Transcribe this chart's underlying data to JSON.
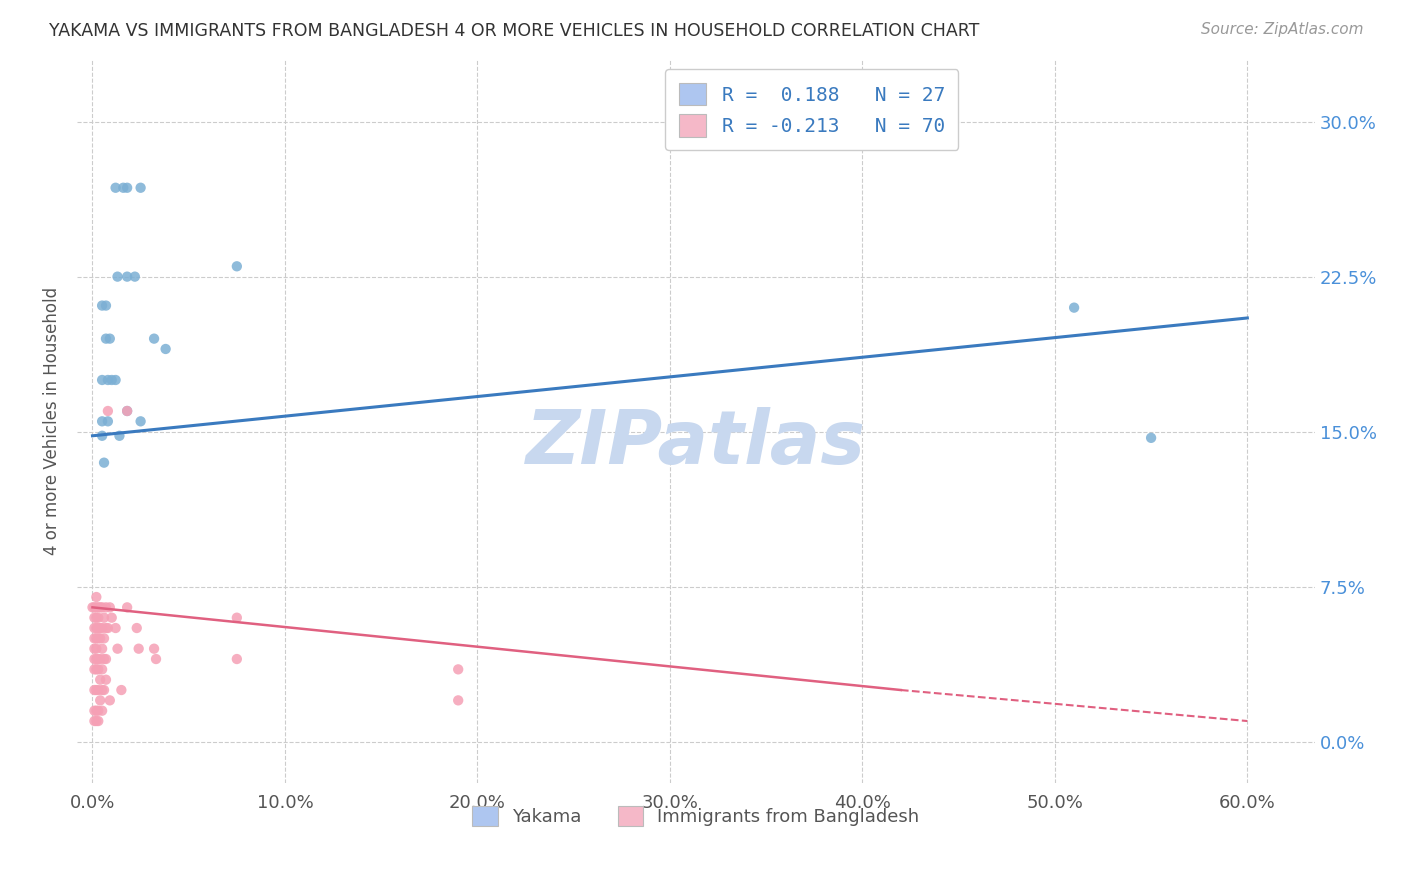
{
  "title": "YAKAMA VS IMMIGRANTS FROM BANGLADESH 4 OR MORE VEHICLES IN HOUSEHOLD CORRELATION CHART",
  "source": "Source: ZipAtlas.com",
  "ylabel": "4 or more Vehicles in Household",
  "x_tick_labels": [
    "0.0%",
    "10.0%",
    "20.0%",
    "30.0%",
    "40.0%",
    "50.0%",
    "60.0%"
  ],
  "x_tick_vals": [
    0.0,
    0.1,
    0.2,
    0.3,
    0.4,
    0.5,
    0.6
  ],
  "y_tick_labels": [
    "0.0%",
    "7.5%",
    "15.0%",
    "22.5%",
    "30.0%"
  ],
  "y_tick_vals": [
    0.0,
    0.075,
    0.15,
    0.225,
    0.3
  ],
  "xlim": [
    -0.008,
    0.635
  ],
  "ylim": [
    -0.02,
    0.33
  ],
  "yakama_color": "#7bafd4",
  "yakama_line_color": "#3a7abf",
  "bangladesh_color": "#f5a0b5",
  "bangladesh_line_color": "#e06080",
  "watermark": "ZIPatlas",
  "watermark_color": "#c8d8ef",
  "scatter_size": 55,
  "legend_yakama_color": "#aec6f0",
  "legend_bangladesh_color": "#f5b8c8",
  "yakama_scatter": [
    [
      0.005,
      0.211
    ],
    [
      0.007,
      0.211
    ],
    [
      0.012,
      0.268
    ],
    [
      0.016,
      0.268
    ],
    [
      0.018,
      0.268
    ],
    [
      0.025,
      0.268
    ],
    [
      0.022,
      0.225
    ],
    [
      0.013,
      0.225
    ],
    [
      0.018,
      0.225
    ],
    [
      0.007,
      0.195
    ],
    [
      0.009,
      0.195
    ],
    [
      0.005,
      0.175
    ],
    [
      0.008,
      0.175
    ],
    [
      0.01,
      0.175
    ],
    [
      0.012,
      0.175
    ],
    [
      0.005,
      0.155
    ],
    [
      0.008,
      0.155
    ],
    [
      0.005,
      0.148
    ],
    [
      0.014,
      0.148
    ],
    [
      0.006,
      0.135
    ],
    [
      0.032,
      0.195
    ],
    [
      0.038,
      0.19
    ],
    [
      0.075,
      0.23
    ],
    [
      0.51,
      0.21
    ],
    [
      0.55,
      0.147
    ],
    [
      0.018,
      0.16
    ],
    [
      0.025,
      0.155
    ]
  ],
  "bangladesh_scatter": [
    [
      0.0,
      0.065
    ],
    [
      0.001,
      0.065
    ],
    [
      0.001,
      0.06
    ],
    [
      0.001,
      0.055
    ],
    [
      0.001,
      0.05
    ],
    [
      0.001,
      0.045
    ],
    [
      0.001,
      0.04
    ],
    [
      0.001,
      0.035
    ],
    [
      0.001,
      0.025
    ],
    [
      0.001,
      0.015
    ],
    [
      0.001,
      0.01
    ],
    [
      0.002,
      0.07
    ],
    [
      0.002,
      0.065
    ],
    [
      0.002,
      0.06
    ],
    [
      0.002,
      0.055
    ],
    [
      0.002,
      0.05
    ],
    [
      0.002,
      0.045
    ],
    [
      0.002,
      0.04
    ],
    [
      0.002,
      0.035
    ],
    [
      0.002,
      0.025
    ],
    [
      0.002,
      0.015
    ],
    [
      0.002,
      0.01
    ],
    [
      0.003,
      0.065
    ],
    [
      0.003,
      0.06
    ],
    [
      0.003,
      0.055
    ],
    [
      0.003,
      0.05
    ],
    [
      0.003,
      0.04
    ],
    [
      0.003,
      0.035
    ],
    [
      0.003,
      0.025
    ],
    [
      0.003,
      0.015
    ],
    [
      0.003,
      0.01
    ],
    [
      0.004,
      0.065
    ],
    [
      0.004,
      0.055
    ],
    [
      0.004,
      0.05
    ],
    [
      0.004,
      0.04
    ],
    [
      0.004,
      0.03
    ],
    [
      0.004,
      0.02
    ],
    [
      0.005,
      0.065
    ],
    [
      0.005,
      0.055
    ],
    [
      0.005,
      0.045
    ],
    [
      0.005,
      0.035
    ],
    [
      0.005,
      0.025
    ],
    [
      0.005,
      0.015
    ],
    [
      0.006,
      0.06
    ],
    [
      0.006,
      0.05
    ],
    [
      0.006,
      0.04
    ],
    [
      0.006,
      0.025
    ],
    [
      0.007,
      0.065
    ],
    [
      0.007,
      0.055
    ],
    [
      0.007,
      0.04
    ],
    [
      0.007,
      0.03
    ],
    [
      0.008,
      0.16
    ],
    [
      0.008,
      0.055
    ],
    [
      0.009,
      0.065
    ],
    [
      0.009,
      0.02
    ],
    [
      0.01,
      0.06
    ],
    [
      0.012,
      0.055
    ],
    [
      0.013,
      0.045
    ],
    [
      0.015,
      0.025
    ],
    [
      0.018,
      0.065
    ],
    [
      0.018,
      0.16
    ],
    [
      0.023,
      0.055
    ],
    [
      0.024,
      0.045
    ],
    [
      0.032,
      0.045
    ],
    [
      0.033,
      0.04
    ],
    [
      0.075,
      0.06
    ],
    [
      0.075,
      0.04
    ],
    [
      0.19,
      0.035
    ],
    [
      0.19,
      0.02
    ]
  ],
  "yakama_line": {
    "x0": 0.0,
    "x1": 0.6,
    "y0": 0.148,
    "y1": 0.205
  },
  "bangladesh_line_solid": {
    "x0": 0.0,
    "x1": 0.42,
    "y0": 0.065,
    "y1": 0.025
  },
  "bangladesh_line_dash": {
    "x0": 0.42,
    "x1": 0.6,
    "y0": 0.025,
    "y1": 0.01
  }
}
